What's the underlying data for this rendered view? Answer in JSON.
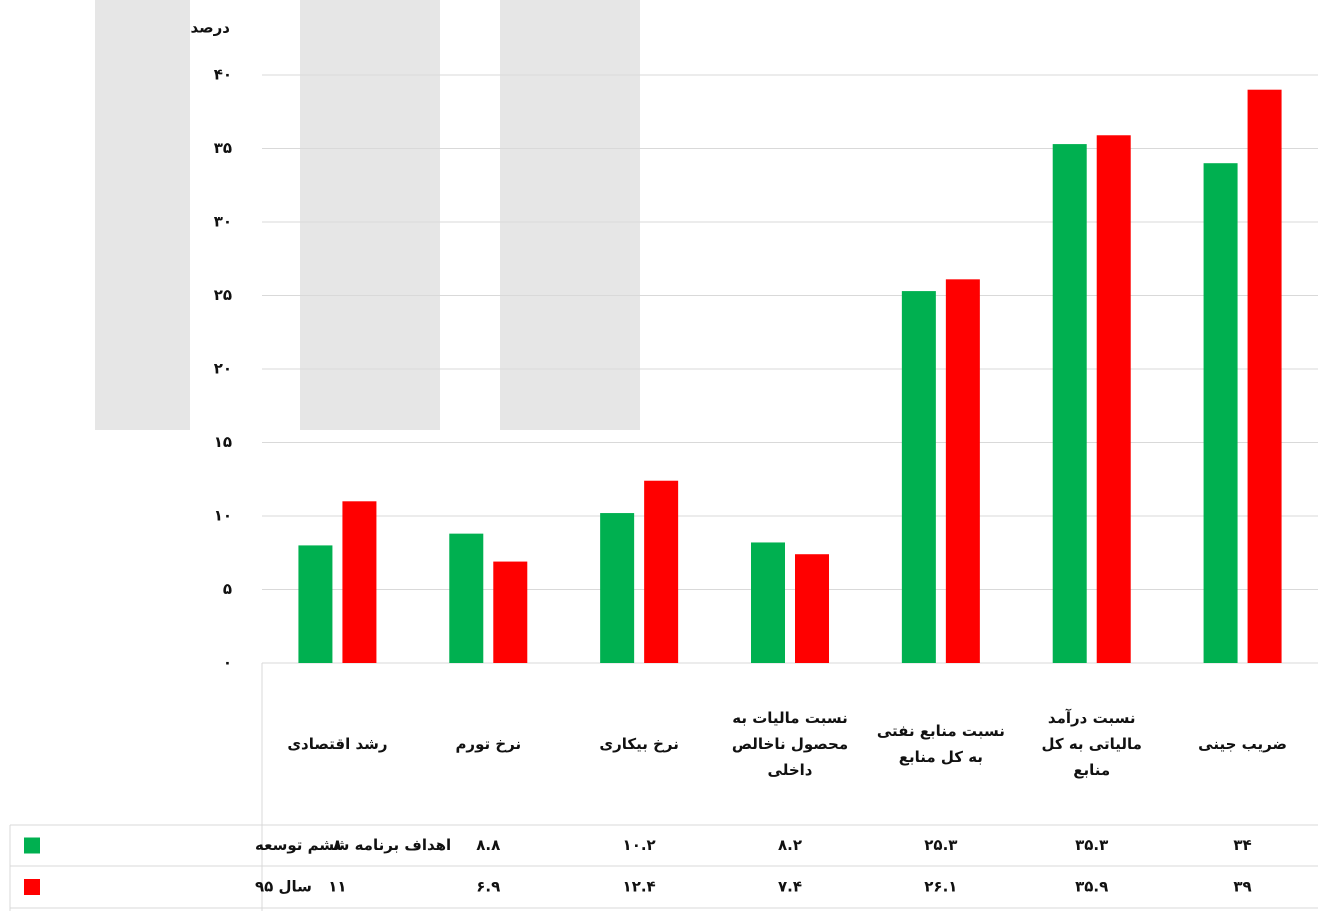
{
  "chart_data": {
    "type": "bar",
    "y_label": "درصد",
    "categories": [
      "رشد اقتصادی",
      "نرخ تورم",
      "نرخ بیکاری",
      "نسبت مالیات به محصول ناخالص داخلی",
      "نسبت منابع نفتی به کل منابع",
      "نسبت درآمد مالیاتی به کل منابع",
      "ضریب جینی"
    ],
    "series": [
      {
        "name": "اهداف برنامه ششم توسعه",
        "color": "#00b050",
        "values": [
          8,
          8.8,
          10.2,
          8.2,
          25.3,
          35.3,
          34
        ],
        "value_labels": [
          "۸",
          "۸.۸",
          "۱۰.۲",
          "۸.۲",
          "۲۵.۳",
          "۳۵.۳",
          "۳۴"
        ]
      },
      {
        "name": "سال ۹۵",
        "color": "#ff0000",
        "values": [
          11,
          6.9,
          12.4,
          7.4,
          26.1,
          35.9,
          39
        ],
        "value_labels": [
          "۱۱",
          "۶.۹",
          "۱۲.۴",
          "۷.۴",
          "۲۶.۱",
          "۳۵.۹",
          "۳۹"
        ]
      }
    ],
    "ylim": [
      0,
      40
    ],
    "yticks": [
      {
        "value": 0,
        "label": "۰"
      },
      {
        "value": 5,
        "label": "۵"
      },
      {
        "value": 10,
        "label": "۱۰"
      },
      {
        "value": 15,
        "label": "۱۵"
      },
      {
        "value": 20,
        "label": "۲۰"
      },
      {
        "value": 25,
        "label": "۲۵"
      },
      {
        "value": 30,
        "label": "۳۰"
      },
      {
        "value": 35,
        "label": "۳۵"
      },
      {
        "value": 40,
        "label": "۴۰"
      }
    ],
    "grid": true
  }
}
